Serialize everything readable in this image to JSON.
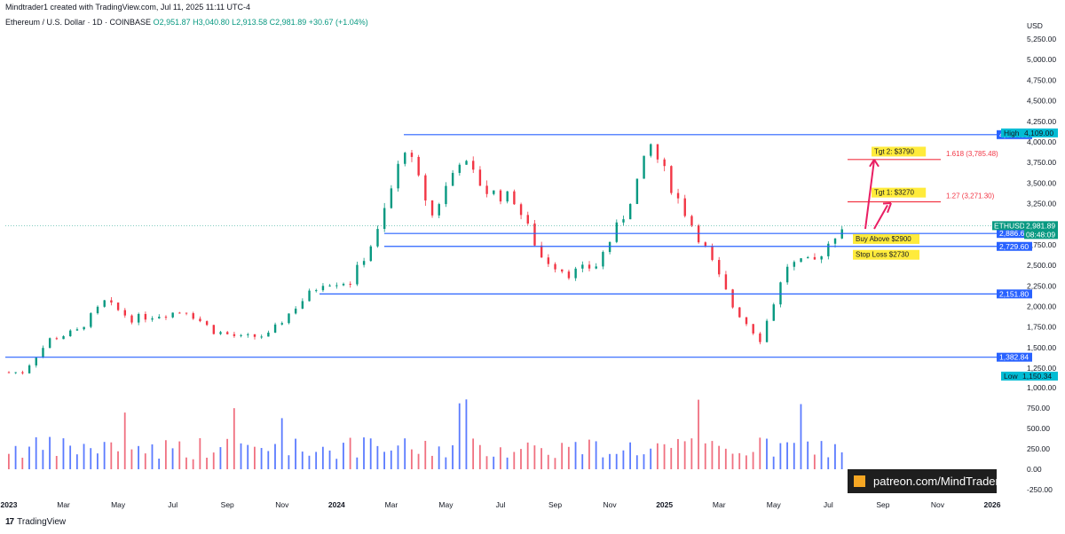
{
  "header": {
    "created_by": "Mindtrader1 created with TradingView.com, Jul 11, 2025 11:11 UTC-4",
    "symbol": "Ethereum / U.S. Dollar · 1D · COINBASE",
    "ohlc": "O2,951.87 H3,040.80 L2,913.58 C2,981.89 +30.67 (+1.04%)"
  },
  "footer": {
    "brand": "TradingView",
    "logo": "17"
  },
  "watermark": {
    "text": "patreon.com/MindTrader"
  },
  "colors": {
    "up": "#089981",
    "down": "#f23645",
    "level": "#2962ff",
    "fib": "#f23645",
    "arrow": "#e91e63",
    "label_bg": "#ffeb3b"
  },
  "chart_data": {
    "type": "candlestick",
    "currency": "USD",
    "x_ticks": [
      "2023",
      "Mar",
      "May",
      "Jul",
      "Sep",
      "Nov",
      "2024",
      "Mar",
      "May",
      "Jul",
      "Sep",
      "Nov",
      "2025",
      "Mar",
      "May",
      "Jul",
      "Sep",
      "Nov",
      "2026"
    ],
    "y_ticks": [
      "5,250.00",
      "5,000.00",
      "4,750.00",
      "4,500.00",
      "4,250.00",
      "4,000.00",
      "3,750.00",
      "3,500.00",
      "3,250.00",
      "3,000.00",
      "2,750.00",
      "2,500.00",
      "2,250.00",
      "2,000.00",
      "1,750.00",
      "1,500.00",
      "1,250.00"
    ],
    "ylim": [
      1100,
      5450
    ],
    "volume_ticks": [
      "1,000.00",
      "750.00",
      "500.00",
      "250.00",
      "0.00",
      "-250.00"
    ],
    "price_path": [
      {
        "t": "2023-01",
        "p": 1200
      },
      {
        "t": "2023-02",
        "p": 1600
      },
      {
        "t": "2023-03",
        "p": 1700
      },
      {
        "t": "2023-04",
        "p": 2050
      },
      {
        "t": "2023-05",
        "p": 1850
      },
      {
        "t": "2023-06",
        "p": 1900
      },
      {
        "t": "2023-07",
        "p": 1950
      },
      {
        "t": "2023-08",
        "p": 1700
      },
      {
        "t": "2023-09",
        "p": 1620
      },
      {
        "t": "2023-10",
        "p": 1650
      },
      {
        "t": "2023-11",
        "p": 2000
      },
      {
        "t": "2023-12",
        "p": 2300
      },
      {
        "t": "2024-01",
        "p": 2300
      },
      {
        "t": "2024-02",
        "p": 2900
      },
      {
        "t": "2024-03",
        "p": 3950
      },
      {
        "t": "2024-04",
        "p": 3100
      },
      {
        "t": "2024-05",
        "p": 3800
      },
      {
        "t": "2024-06",
        "p": 3400
      },
      {
        "t": "2024-07",
        "p": 3300
      },
      {
        "t": "2024-08",
        "p": 2600
      },
      {
        "t": "2024-09",
        "p": 2400
      },
      {
        "t": "2024-10",
        "p": 2500
      },
      {
        "t": "2024-11",
        "p": 3100
      },
      {
        "t": "2024-12",
        "p": 3950
      },
      {
        "t": "2025-01",
        "p": 3300
      },
      {
        "t": "2025-02",
        "p": 2700
      },
      {
        "t": "2025-03",
        "p": 2000
      },
      {
        "t": "2025-04",
        "p": 1600
      },
      {
        "t": "2025-05",
        "p": 2500
      },
      {
        "t": "2025-06",
        "p": 2550
      },
      {
        "t": "2025-07",
        "p": 2982
      }
    ],
    "levels": [
      {
        "value": 4087.63,
        "label": "4,087.63"
      },
      {
        "value": 2886.63,
        "label": "2,886.63"
      },
      {
        "value": 2729.6,
        "label": "2,729.60"
      },
      {
        "value": 2151.8,
        "label": "2,151.80"
      },
      {
        "value": 1382.84,
        "label": "1,382.84"
      }
    ],
    "high": {
      "label": "High",
      "value": "4,109.00"
    },
    "low": {
      "label": "Low",
      "value": "1,150.34"
    },
    "last": {
      "symbol": "ETHUSD",
      "value": "2,981.89",
      "countdown": "08:48:09",
      "price": 2981.89
    },
    "fib_levels": [
      {
        "value": 3785.48,
        "label": "1.618 (3,785.48)"
      },
      {
        "value": 3271.3,
        "label": "1.27 (3,271.30)"
      }
    ],
    "annotations": [
      {
        "text": "Tgt 2: $3790",
        "value": 3790
      },
      {
        "text": "Tgt 1: $3270",
        "value": 3270
      },
      {
        "text": "Buy Above $2900",
        "value": 2900
      },
      {
        "text": "Stop Loss $2730",
        "value": 2730
      }
    ]
  }
}
